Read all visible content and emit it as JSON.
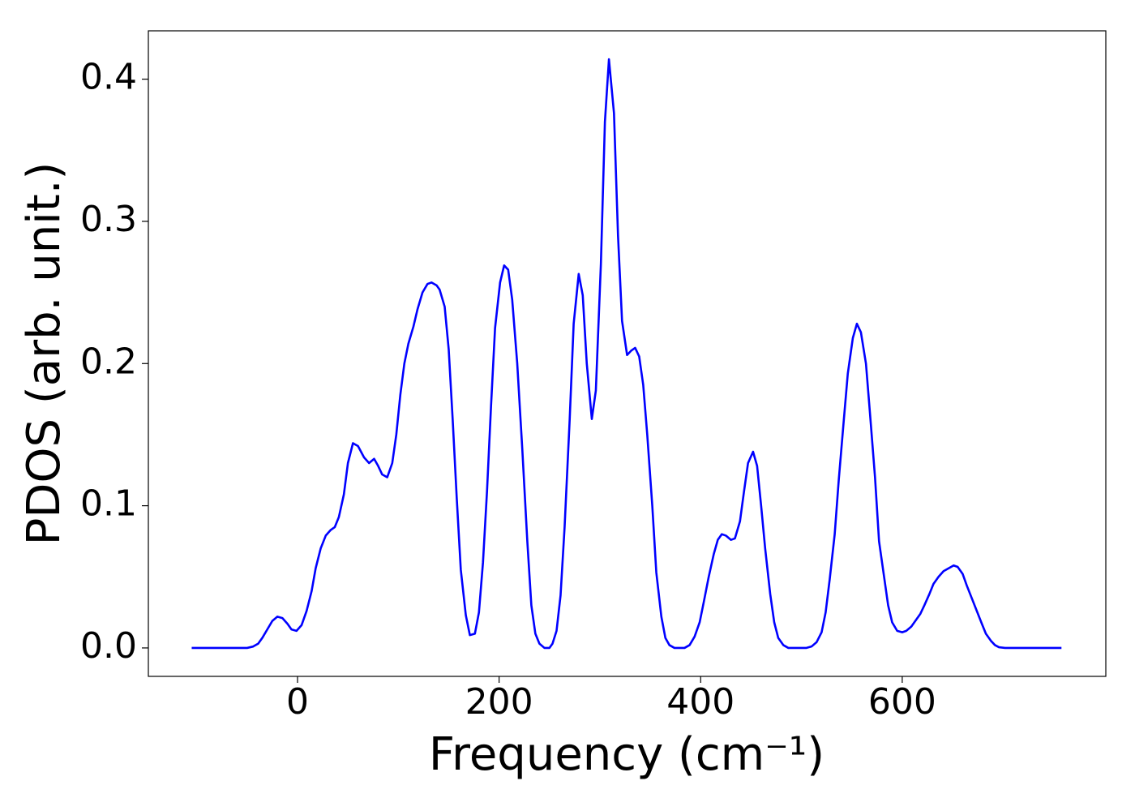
{
  "chart_data": {
    "type": "line",
    "xlabel": "Frequency (cm⁻¹)",
    "ylabel": "PDOS (arb. unit.)",
    "color": "#0000ff",
    "x": [
      -105,
      -50,
      -44,
      -39,
      -35,
      -30,
      -25,
      -20,
      -15,
      -10,
      -6,
      -1,
      4,
      9,
      14,
      18,
      23,
      28,
      33,
      37,
      41,
      46,
      50,
      55,
      60,
      66,
      71,
      76,
      80,
      84,
      89,
      94,
      98,
      102,
      106,
      110,
      115,
      119,
      124,
      129,
      133,
      138,
      141,
      146,
      150,
      154,
      158,
      162,
      167,
      171,
      176,
      180,
      184,
      188,
      192,
      196,
      201,
      205,
      209,
      213,
      218,
      223,
      228,
      232,
      236,
      240,
      245,
      250,
      253,
      257,
      261,
      265,
      270,
      274,
      279,
      283,
      287,
      292,
      296,
      301,
      305,
      309,
      314,
      318,
      322,
      327,
      331,
      335,
      339,
      343,
      347,
      352,
      356,
      361,
      365,
      369,
      374,
      384,
      389,
      394,
      399,
      403,
      408,
      413,
      417,
      421,
      425,
      430,
      434,
      439,
      443,
      447,
      452,
      456,
      460,
      464,
      469,
      473,
      477,
      482,
      487,
      505,
      510,
      515,
      520,
      524,
      528,
      533,
      537,
      542,
      546,
      551,
      555,
      559,
      564,
      568,
      573,
      577,
      582,
      586,
      590,
      595,
      600,
      604,
      609,
      613,
      618,
      622,
      627,
      631,
      636,
      641,
      646,
      651,
      655,
      660,
      664,
      669,
      674,
      679,
      683,
      688,
      692,
      696,
      702,
      758
    ],
    "values": [
      0,
      0,
      0.001,
      0.003,
      0.007,
      0.013,
      0.019,
      0.022,
      0.021,
      0.017,
      0.013,
      0.012,
      0.016,
      0.026,
      0.04,
      0.056,
      0.07,
      0.079,
      0.083,
      0.085,
      0.092,
      0.108,
      0.13,
      0.144,
      0.142,
      0.134,
      0.13,
      0.133,
      0.128,
      0.122,
      0.12,
      0.13,
      0.15,
      0.178,
      0.2,
      0.214,
      0.226,
      0.238,
      0.25,
      0.256,
      0.257,
      0.255,
      0.252,
      0.24,
      0.21,
      0.16,
      0.105,
      0.055,
      0.023,
      0.009,
      0.01,
      0.025,
      0.06,
      0.11,
      0.17,
      0.225,
      0.257,
      0.269,
      0.266,
      0.245,
      0.2,
      0.14,
      0.075,
      0.03,
      0.01,
      0.003,
      0,
      0,
      0.003,
      0.012,
      0.037,
      0.085,
      0.16,
      0.228,
      0.263,
      0.248,
      0.2,
      0.161,
      0.181,
      0.27,
      0.37,
      0.414,
      0.376,
      0.29,
      0.23,
      0.206,
      0.209,
      0.211,
      0.205,
      0.185,
      0.15,
      0.1,
      0.053,
      0.022,
      0.007,
      0.002,
      0,
      0,
      0.002,
      0.008,
      0.018,
      0.032,
      0.05,
      0.066,
      0.076,
      0.08,
      0.079,
      0.076,
      0.077,
      0.089,
      0.11,
      0.13,
      0.138,
      0.128,
      0.1,
      0.07,
      0.038,
      0.018,
      0.007,
      0.002,
      0,
      0,
      0.001,
      0.004,
      0.011,
      0.025,
      0.048,
      0.08,
      0.118,
      0.16,
      0.193,
      0.218,
      0.228,
      0.222,
      0.2,
      0.165,
      0.12,
      0.075,
      0.05,
      0.03,
      0.018,
      0.012,
      0.011,
      0.012,
      0.015,
      0.019,
      0.024,
      0.03,
      0.038,
      0.045,
      0.05,
      0.054,
      0.056,
      0.058,
      0.057,
      0.052,
      0.044,
      0.035,
      0.026,
      0.017,
      0.01,
      0.005,
      0.002,
      0.0005,
      0,
      0
    ],
    "xlim": [
      -148,
      802
    ],
    "ylim": [
      -0.02,
      0.434
    ],
    "xticks": [
      0,
      200,
      400,
      600
    ],
    "yticks": [
      {
        "value": 0,
        "label": "0.0"
      },
      0.1,
      0.2,
      0.3,
      0.4
    ]
  }
}
